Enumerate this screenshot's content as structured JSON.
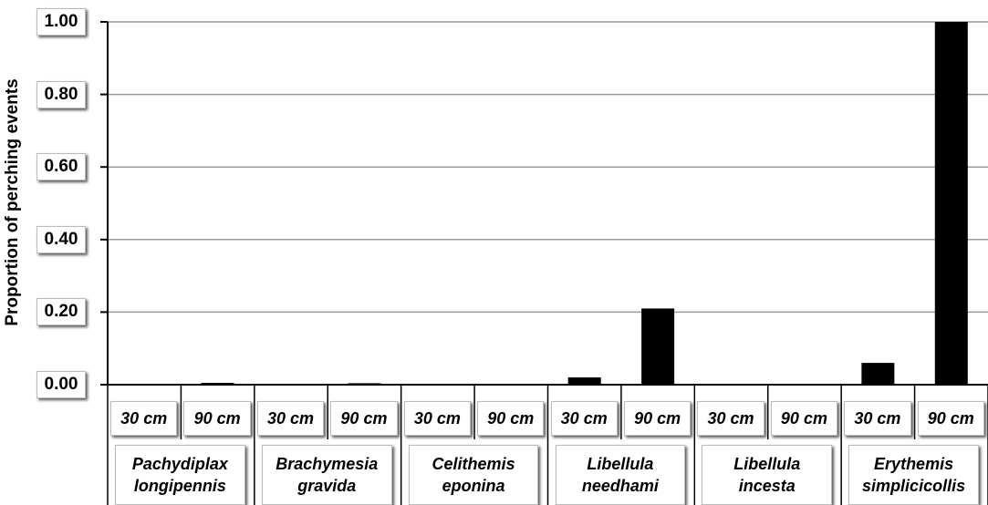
{
  "chart_data": {
    "type": "bar",
    "y_label": "Proportion of perching events",
    "categories": [
      "30 cm",
      "90 cm",
      "30 cm",
      "90 cm",
      "30 cm",
      "90 cm",
      "30 cm",
      "90 cm",
      "30 cm",
      "90 cm",
      "30 cm",
      "90 cm"
    ],
    "groups": [
      "Pachydiplax longipennis",
      "Brachymesia gravida",
      "Celithemis eponina",
      "Libellula needhami",
      "Libellula incesta",
      "Erythemis simplicicollis"
    ],
    "values": [
      0,
      0.005,
      0,
      0.004,
      0,
      0,
      0.02,
      0.21,
      0,
      0,
      0.06,
      1.0
    ],
    "color": "#000000",
    "ylim": [
      0,
      1.0
    ],
    "yticks": [
      {
        "value": 0,
        "label": "0.00"
      },
      {
        "value": 0.2,
        "label": "0.20"
      },
      {
        "value": 0.4,
        "label": "0.40"
      },
      {
        "value": 0.6,
        "label": "0.60"
      },
      {
        "value": 0.8,
        "label": "0.80"
      },
      {
        "value": 1.0,
        "label": "1.00"
      }
    ],
    "grid": true
  }
}
